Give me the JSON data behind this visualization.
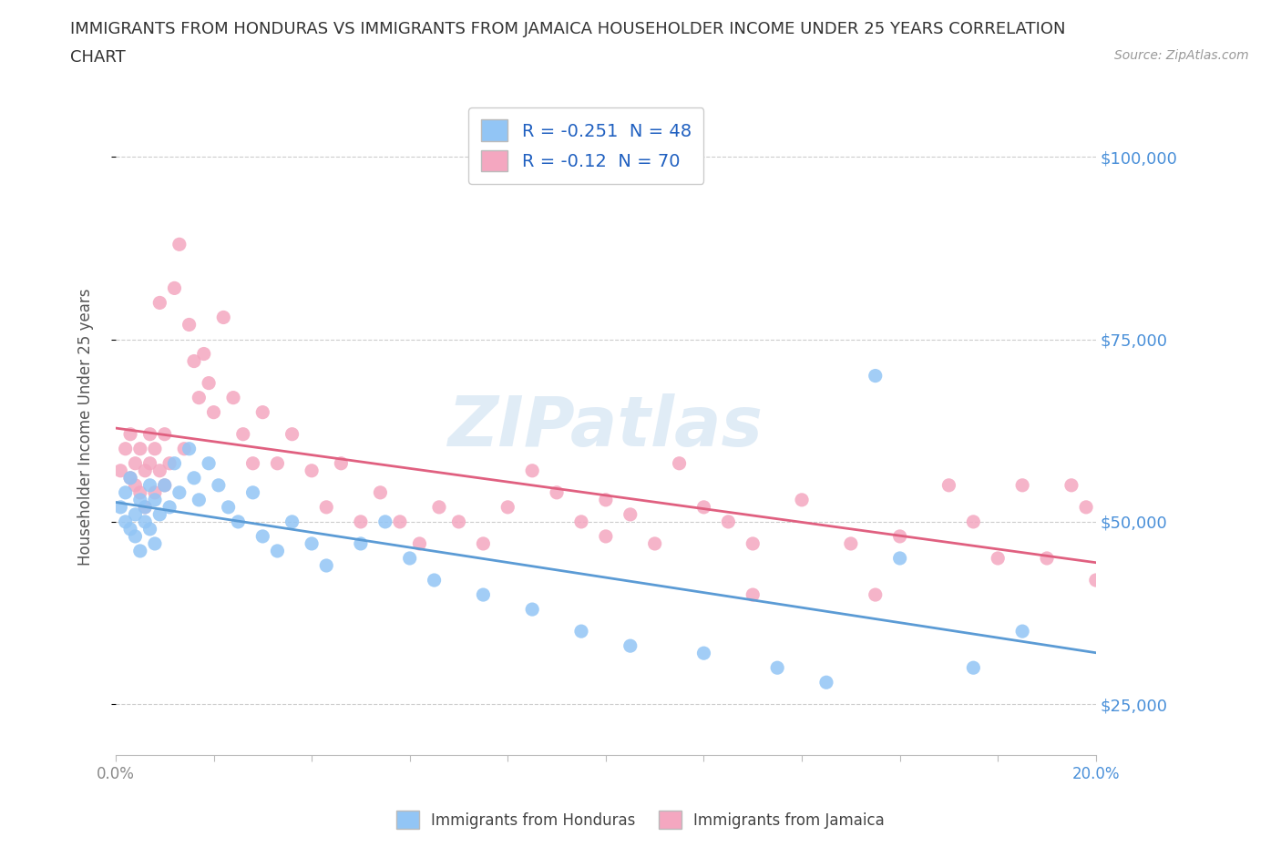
{
  "title_line1": "IMMIGRANTS FROM HONDURAS VS IMMIGRANTS FROM JAMAICA HOUSEHOLDER INCOME UNDER 25 YEARS CORRELATION",
  "title_line2": "CHART",
  "source": "Source: ZipAtlas.com",
  "ylabel": "Householder Income Under 25 years",
  "xlim": [
    0.0,
    0.2
  ],
  "ylim": [
    18000,
    108000
  ],
  "xticks": [
    0.0,
    0.02,
    0.04,
    0.06,
    0.08,
    0.1,
    0.12,
    0.14,
    0.16,
    0.18,
    0.2
  ],
  "xticklabels": [
    "0.0%",
    "",
    "",
    "",
    "",
    "",
    "",
    "",
    "",
    "",
    "20.0%"
  ],
  "yticks": [
    25000,
    50000,
    75000,
    100000
  ],
  "yticklabels": [
    "$25,000",
    "$50,000",
    "$75,000",
    "$100,000"
  ],
  "honduras_color": "#92c5f5",
  "jamaica_color": "#f4a7c0",
  "honduras_line_color": "#5b9bd5",
  "jamaica_line_color": "#e06080",
  "honduras_R": -0.251,
  "honduras_N": 48,
  "jamaica_R": -0.12,
  "jamaica_N": 70,
  "watermark": "ZIPatlas",
  "watermark_color": "#c8ddf0",
  "legend_R_color": "#2060c0",
  "legend_N_color": "#2060c0",
  "legend_label_honduras": "Immigrants from Honduras",
  "legend_label_jamaica": "Immigrants from Jamaica",
  "ytick_color": "#4a90d9",
  "xtick_color_default": "#888888",
  "xtick_color_last": "#4a90d9",
  "background_color": "#ffffff",
  "honduras_x": [
    0.001,
    0.002,
    0.002,
    0.003,
    0.003,
    0.004,
    0.004,
    0.005,
    0.005,
    0.006,
    0.006,
    0.007,
    0.007,
    0.008,
    0.008,
    0.009,
    0.01,
    0.011,
    0.012,
    0.013,
    0.015,
    0.016,
    0.017,
    0.019,
    0.021,
    0.023,
    0.025,
    0.028,
    0.03,
    0.033,
    0.036,
    0.04,
    0.043,
    0.05,
    0.055,
    0.06,
    0.065,
    0.075,
    0.085,
    0.095,
    0.105,
    0.12,
    0.135,
    0.145,
    0.155,
    0.16,
    0.175,
    0.185
  ],
  "honduras_y": [
    52000,
    50000,
    54000,
    49000,
    56000,
    51000,
    48000,
    53000,
    46000,
    52000,
    50000,
    49000,
    55000,
    47000,
    53000,
    51000,
    55000,
    52000,
    58000,
    54000,
    60000,
    56000,
    53000,
    58000,
    55000,
    52000,
    50000,
    54000,
    48000,
    46000,
    50000,
    47000,
    44000,
    47000,
    50000,
    45000,
    42000,
    40000,
    38000,
    35000,
    33000,
    32000,
    30000,
    28000,
    70000,
    45000,
    30000,
    35000
  ],
  "jamaica_x": [
    0.001,
    0.002,
    0.003,
    0.003,
    0.004,
    0.004,
    0.005,
    0.005,
    0.006,
    0.006,
    0.007,
    0.007,
    0.008,
    0.008,
    0.009,
    0.009,
    0.01,
    0.01,
    0.011,
    0.012,
    0.013,
    0.014,
    0.015,
    0.016,
    0.017,
    0.018,
    0.019,
    0.02,
    0.022,
    0.024,
    0.026,
    0.028,
    0.03,
    0.033,
    0.036,
    0.04,
    0.043,
    0.046,
    0.05,
    0.054,
    0.058,
    0.062,
    0.066,
    0.07,
    0.075,
    0.08,
    0.085,
    0.09,
    0.095,
    0.1,
    0.105,
    0.11,
    0.115,
    0.12,
    0.125,
    0.13,
    0.14,
    0.15,
    0.155,
    0.16,
    0.17,
    0.175,
    0.18,
    0.185,
    0.19,
    0.195,
    0.198,
    0.2,
    0.1,
    0.13
  ],
  "jamaica_y": [
    57000,
    60000,
    56000,
    62000,
    55000,
    58000,
    54000,
    60000,
    57000,
    52000,
    62000,
    58000,
    54000,
    60000,
    80000,
    57000,
    55000,
    62000,
    58000,
    82000,
    88000,
    60000,
    77000,
    72000,
    67000,
    73000,
    69000,
    65000,
    78000,
    67000,
    62000,
    58000,
    65000,
    58000,
    62000,
    57000,
    52000,
    58000,
    50000,
    54000,
    50000,
    47000,
    52000,
    50000,
    47000,
    52000,
    57000,
    54000,
    50000,
    53000,
    51000,
    47000,
    58000,
    52000,
    50000,
    47000,
    53000,
    47000,
    40000,
    48000,
    55000,
    50000,
    45000,
    55000,
    45000,
    55000,
    52000,
    42000,
    48000,
    40000
  ]
}
